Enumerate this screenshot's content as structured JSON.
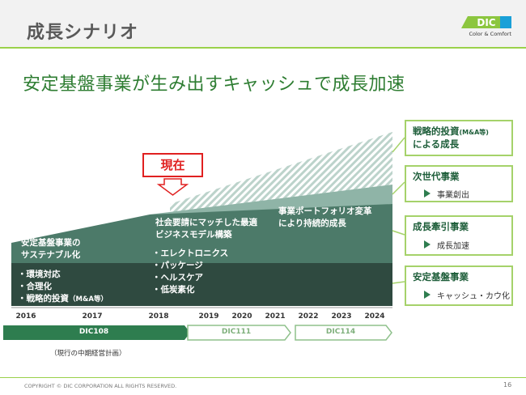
{
  "header": {
    "title": "成長シナリオ"
  },
  "logo": {
    "mark": "DIC",
    "tagline": "Color & Comfort"
  },
  "headline": "安定基盤事業が生み出すキャッシュで成長加速",
  "layers": {
    "base": {
      "title_lines": [
        "安定基盤事業の",
        "サステナブル化"
      ],
      "bullets": [
        "環境対応",
        "合理化",
        "戦略的投資"
      ],
      "bullet_note": "（M&A等）"
    },
    "mid": {
      "title_lines": [
        "社会要請にマッチした最適",
        "ビジネスモデル構築"
      ],
      "bullets": [
        "エレクトロニクス",
        "パッケージ",
        "ヘルスケア",
        "低炭素化"
      ]
    },
    "upper": {
      "title_lines": [
        "事業ポートフォリオ変革",
        "により持続的成長"
      ]
    }
  },
  "now_marker": "現在",
  "years": [
    "2016",
    "2017",
    "2018",
    "2019",
    "2020",
    "2021",
    "2022",
    "2023",
    "2024"
  ],
  "cards": [
    {
      "title": "戦略的投資",
      "title_small": "(M&A等)",
      "title2": "による成長",
      "sub": ""
    },
    {
      "title": "次世代事業",
      "sub": "事業創出"
    },
    {
      "title": "成長牽引事業",
      "sub": "成長加速"
    },
    {
      "title": "安定基盤事業",
      "sub": "キャッシュ・カウ化"
    }
  ],
  "phases": [
    "DIC108",
    "DIC111",
    "DIC114"
  ],
  "plan_note": "（現行の中期経営計画）",
  "footer": {
    "copyright": "COPYRIGHT © DIC CORPORATION ALL RIGHTS RESERVED.",
    "page": "16"
  },
  "colors": {
    "base_layer": "#2f4a40",
    "mid_layer": "#4c7a69",
    "upper_layer": "#8fb4a7",
    "hatch_layer": "#bcd3cb",
    "accent_green": "#a5d26a",
    "now_red": "#e02020"
  }
}
